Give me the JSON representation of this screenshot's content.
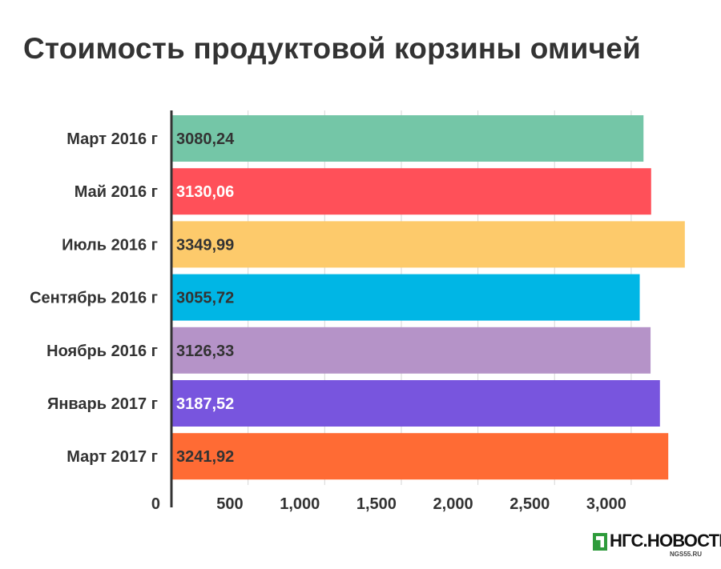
{
  "title": "Стоимость продуктовой корзины омичей",
  "logo": {
    "name": "НГС.НОВОСТИ",
    "site": "NGS55.RU"
  },
  "chart_data": {
    "type": "bar",
    "orientation": "horizontal",
    "categories": [
      "Март 2016 г",
      "Май 2016 г",
      "Июль 2016 г",
      "Сентябрь 2016 г",
      "Ноябрь 2016 г",
      "Январь 2017 г",
      "Март 2017 г"
    ],
    "values": [
      3080.24,
      3130.06,
      3349.99,
      3055.72,
      3126.33,
      3187.52,
      3241.92
    ],
    "value_labels": [
      "3080,24",
      "3130,06",
      "3349,99",
      "3055,72",
      "3126,33",
      "3187,52",
      "3241,92"
    ],
    "colors": [
      "#74c6a7",
      "#ff5059",
      "#fdca6b",
      "#00b6e5",
      "#b593c8",
      "#7855de",
      "#ff6b34"
    ],
    "label_colors": [
      "#333333",
      "#ffffff",
      "#333333",
      "#333333",
      "#333333",
      "#ffffff",
      "#333333"
    ],
    "x_ticks": [
      0,
      500,
      1000,
      1500,
      2000,
      2500,
      3000
    ],
    "x_tick_labels": [
      "0",
      "500",
      "1,000",
      "1,500",
      "2,000",
      "2,500",
      "3,000"
    ],
    "xlim": [
      0,
      3350
    ],
    "grid": true,
    "title": "Стоимость продуктовой корзины омичей",
    "xlabel": "",
    "ylabel": ""
  }
}
